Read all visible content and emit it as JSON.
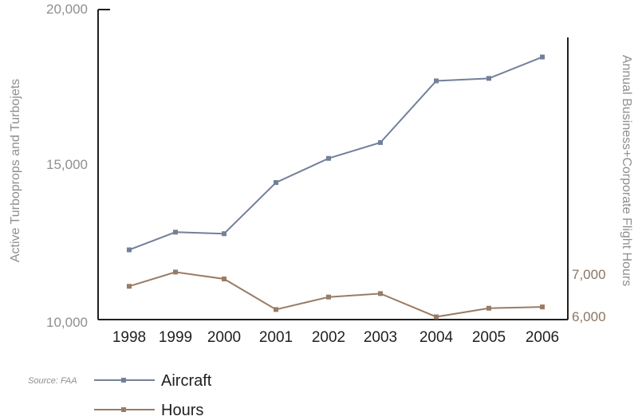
{
  "chart_data": {
    "type": "line",
    "title": "",
    "xlabel": "",
    "ylabel": "Active Turboprops and Turbojets",
    "y2label": "Annual Business+Corporate Flight Hours",
    "categories": [
      "1998",
      "1999",
      "2000",
      "2001",
      "2002",
      "2003",
      "2004",
      "2005",
      "2006"
    ],
    "ylim": [
      10000,
      20000
    ],
    "y_ticks": [
      "10,000",
      "15,000",
      "20,000"
    ],
    "y2_ticks": [
      "6,000",
      "7,000"
    ],
    "series": [
      {
        "name": "Aircraft",
        "axis": "left",
        "color": "#73809a",
        "values": [
          12250,
          12820,
          12770,
          14420,
          15200,
          15710,
          17700,
          17780,
          18470
        ]
      },
      {
        "name": "Hours",
        "axis": "right",
        "color": "#9a7b64",
        "values": [
          6700,
          7030,
          6870,
          6160,
          6450,
          6530,
          5990,
          6190,
          6220
        ]
      }
    ],
    "grid": false,
    "legend_position": "bottom-left",
    "source": "Source: FAA"
  }
}
